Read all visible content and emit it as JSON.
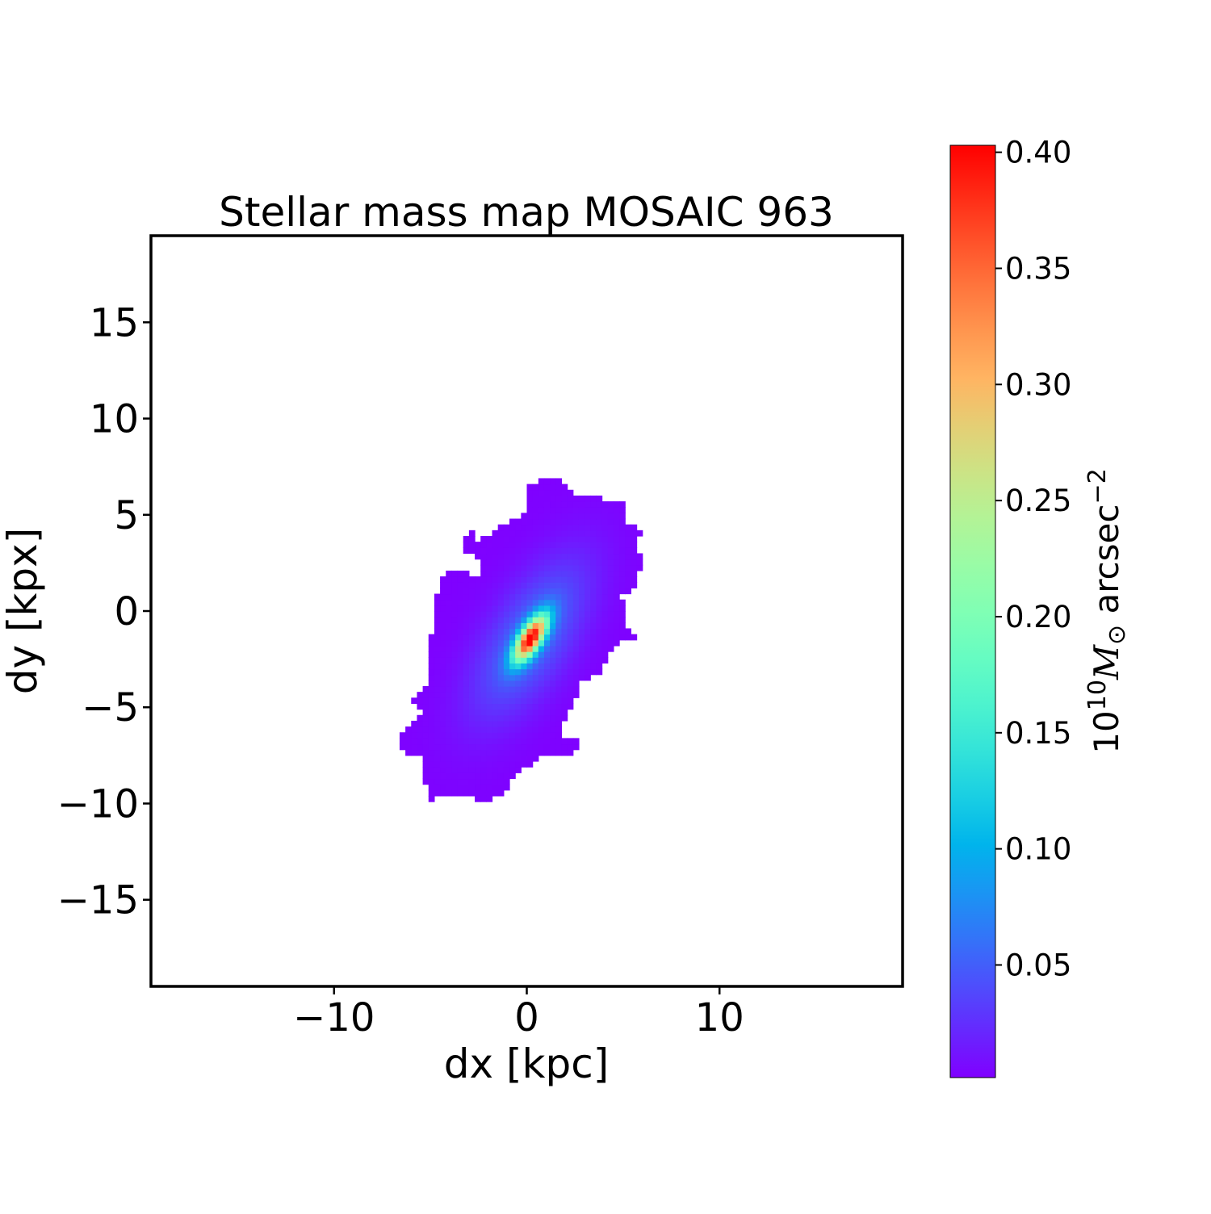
{
  "chart_data": {
    "type": "heatmap",
    "title": "Stellar mass map MOSAIC 963",
    "xlabel": "dx [kpc]",
    "ylabel": "dy [kpx]",
    "xlim": [
      -19.5,
      19.5
    ],
    "ylim": [
      -19.5,
      19.5
    ],
    "xticks": [
      -10,
      0,
      10
    ],
    "xtick_labels": [
      "−10",
      "0",
      "10"
    ],
    "yticks": [
      -15,
      -10,
      -5,
      0,
      5,
      10,
      15
    ],
    "ytick_labels": [
      "−15",
      "−10",
      "−5",
      "0",
      "5",
      "10",
      "15"
    ],
    "grid": false,
    "colormap": "rainbow",
    "colorbar": {
      "label_base": "10",
      "label_exp": "10",
      "label_sym": "M",
      "label_sub": "⊙",
      "label_unit": " arcsec",
      "label_unit_exp": "−2",
      "range": [
        0.0015,
        0.403
      ],
      "ticks": [
        0.05,
        0.1,
        0.15,
        0.2,
        0.25,
        0.3,
        0.35,
        0.4
      ],
      "tick_labels": [
        "0.05",
        "0.10",
        "0.15",
        "0.20",
        "0.25",
        "0.30",
        "0.35",
        "0.40"
      ]
    },
    "peak": {
      "x": 0.2,
      "y": -1.4,
      "value": 0.4
    },
    "map_outline": [
      [
        0.0,
        6.4
      ],
      [
        0.3,
        6.7
      ],
      [
        1.6,
        6.9
      ],
      [
        2.0,
        6.6
      ],
      [
        2.6,
        6.1
      ],
      [
        3.9,
        5.9
      ],
      [
        4.5,
        5.6
      ],
      [
        5.0,
        5.7
      ],
      [
        5.2,
        4.6
      ],
      [
        5.8,
        4.3
      ],
      [
        6.2,
        3.9
      ],
      [
        5.6,
        3.7
      ],
      [
        5.6,
        3.0
      ],
      [
        6.0,
        2.8
      ],
      [
        6.0,
        2.2
      ],
      [
        5.6,
        2.0
      ],
      [
        5.6,
        1.1
      ],
      [
        4.9,
        0.8
      ],
      [
        5.2,
        0.3
      ],
      [
        5.2,
        -0.8
      ],
      [
        5.6,
        -1.4
      ],
      [
        4.5,
        -1.7
      ],
      [
        4.3,
        -2.4
      ],
      [
        3.9,
        -2.9
      ],
      [
        4.1,
        -3.3
      ],
      [
        2.9,
        -3.5
      ],
      [
        2.6,
        -4.3
      ],
      [
        2.2,
        -5.2
      ],
      [
        1.8,
        -5.8
      ],
      [
        1.8,
        -6.4
      ],
      [
        2.6,
        -6.7
      ],
      [
        2.6,
        -7.3
      ],
      [
        1.6,
        -7.5
      ],
      [
        0.8,
        -7.5
      ],
      [
        0.5,
        -7.9
      ],
      [
        -0.3,
        -8.1
      ],
      [
        -0.9,
        -8.8
      ],
      [
        -1.1,
        -9.4
      ],
      [
        -1.6,
        -9.6
      ],
      [
        -1.8,
        -9.9
      ],
      [
        -2.4,
        -9.9
      ],
      [
        -3.0,
        -9.6
      ],
      [
        -4.5,
        -9.6
      ],
      [
        -4.9,
        -9.9
      ],
      [
        -5.2,
        -9.6
      ],
      [
        -5.3,
        -8.5
      ],
      [
        -5.5,
        -8.1
      ],
      [
        -5.5,
        -7.5
      ],
      [
        -6.2,
        -7.4
      ],
      [
        -6.7,
        -7.1
      ],
      [
        -6.7,
        -6.4
      ],
      [
        -6.2,
        -5.9
      ],
      [
        -5.7,
        -5.8
      ],
      [
        -5.5,
        -5.2
      ],
      [
        -6.0,
        -4.8
      ],
      [
        -5.7,
        -4.1
      ],
      [
        -5.1,
        -3.9
      ],
      [
        -5.1,
        -1.8
      ],
      [
        -4.9,
        -0.8
      ],
      [
        -4.7,
        -0.1
      ],
      [
        -4.9,
        0.5
      ],
      [
        -4.5,
        1.1
      ],
      [
        -4.3,
        1.9
      ],
      [
        -3.9,
        2.2
      ],
      [
        -3.1,
        2.1
      ],
      [
        -2.8,
        1.8
      ],
      [
        -2.4,
        2.0
      ],
      [
        -2.6,
        2.8
      ],
      [
        -3.2,
        3.0
      ],
      [
        -3.2,
        4.0
      ],
      [
        -2.8,
        4.1
      ],
      [
        -2.6,
        3.7
      ],
      [
        -2.0,
        3.9
      ],
      [
        -1.8,
        4.3
      ],
      [
        -1.1,
        4.5
      ],
      [
        -0.5,
        4.9
      ],
      [
        -0.1,
        5.1
      ]
    ]
  }
}
